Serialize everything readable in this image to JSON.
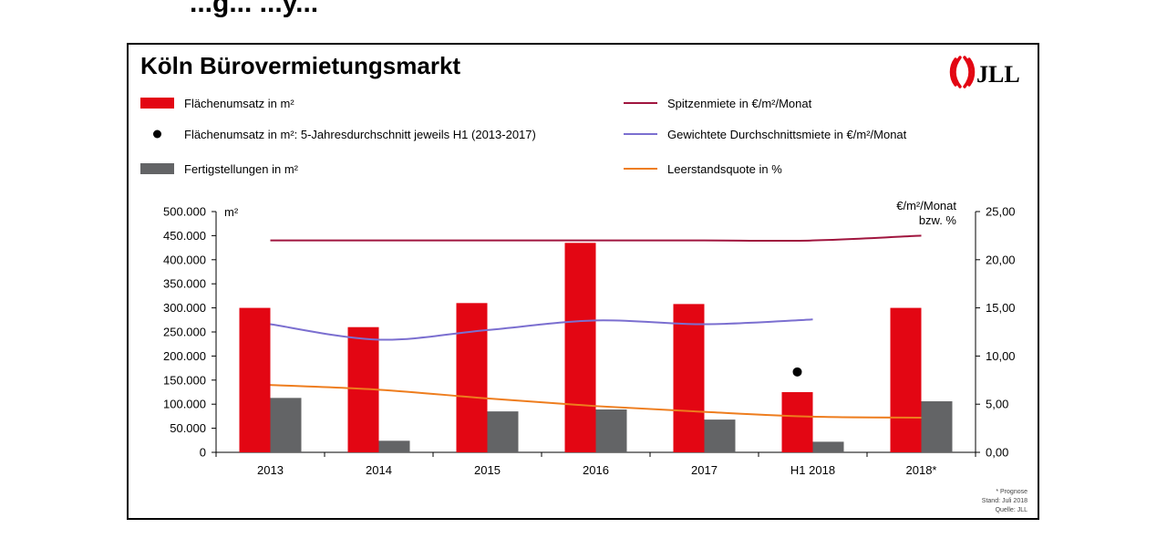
{
  "page": {
    "top_partial_text": "...g... ...y..."
  },
  "brand": {
    "logo_text": "JLL",
    "logo_color": "#e30613"
  },
  "chart_data": {
    "type": "bar",
    "title": "Köln Bürovermietungsmarkt",
    "categories": [
      "2013",
      "2014",
      "2015",
      "2016",
      "2017",
      "H1 2018",
      "2018*"
    ],
    "left_axis": {
      "unit_label": "m²",
      "range": [
        0,
        500000
      ],
      "ticks": [
        "0",
        "50.000",
        "100.000",
        "150.000",
        "200.000",
        "250.000",
        "300.000",
        "350.000",
        "400.000",
        "450.000",
        "500.000"
      ]
    },
    "right_axis": {
      "unit_label_line1": "€/m²/Monat",
      "unit_label_line2": "bzw. %",
      "range": [
        0,
        25
      ],
      "ticks": [
        "0,00",
        "5,00",
        "10,00",
        "15,00",
        "20,00",
        "25,00"
      ]
    },
    "series": [
      {
        "name": "Flächenumsatz in m²",
        "kind": "bar",
        "axis": "left",
        "color": "#e30613",
        "values": [
          300000,
          260000,
          310000,
          435000,
          308000,
          125000,
          300000
        ]
      },
      {
        "name": "Fertigstellungen in m²",
        "kind": "bar",
        "axis": "left",
        "color": "#636466",
        "values": [
          113000,
          24000,
          85000,
          89000,
          68000,
          22000,
          106000
        ]
      },
      {
        "name": "Flächenumsatz in m²: 5-Jahresdurchschnitt jeweils H1 (2013-2017)",
        "kind": "point",
        "axis": "left",
        "color": "#000000",
        "points": [
          {
            "category": "H1 2018",
            "value": 167000
          }
        ]
      },
      {
        "name": "Spitzenmiete in €/m²/Monat",
        "kind": "line",
        "axis": "right",
        "color": "#a0153e",
        "values": [
          22.0,
          22.0,
          22.0,
          22.0,
          22.0,
          22.0,
          22.5
        ]
      },
      {
        "name": "Gewichtete Durchschnittsmiete in €/m²/Monat",
        "kind": "line",
        "axis": "right",
        "color": "#7b6fd0",
        "values": [
          13.3,
          11.7,
          12.7,
          13.7,
          13.3,
          13.8,
          null
        ]
      },
      {
        "name": "Leerstandsquote in %",
        "kind": "line",
        "axis": "right",
        "color": "#ee7d1e",
        "values": [
          7.0,
          6.5,
          5.6,
          4.8,
          4.2,
          3.7,
          3.6
        ]
      }
    ],
    "legend": {
      "placement": "top",
      "items": [
        {
          "label": "Flächenumsatz in m²",
          "symbol": "bar",
          "color": "#e30613"
        },
        {
          "label": "Flächenumsatz in m²: 5-Jahresdurchschnitt jeweils H1 (2013-2017)",
          "symbol": "dot",
          "color": "#000000"
        },
        {
          "label": "Fertigstellungen in m²",
          "symbol": "bar",
          "color": "#636466"
        },
        {
          "label": "Spitzenmiete in €/m²/Monat",
          "symbol": "line",
          "color": "#a0153e"
        },
        {
          "label": "Gewichtete Durchschnittsmiete in €/m²/Monat",
          "symbol": "line",
          "color": "#7b6fd0"
        },
        {
          "label": "Leerstandsquote in %",
          "symbol": "line",
          "color": "#ee7d1e"
        }
      ]
    },
    "footnotes": [
      "* Prognose",
      "Stand: Juli 2018",
      "Quelle: JLL"
    ],
    "grid": false
  }
}
